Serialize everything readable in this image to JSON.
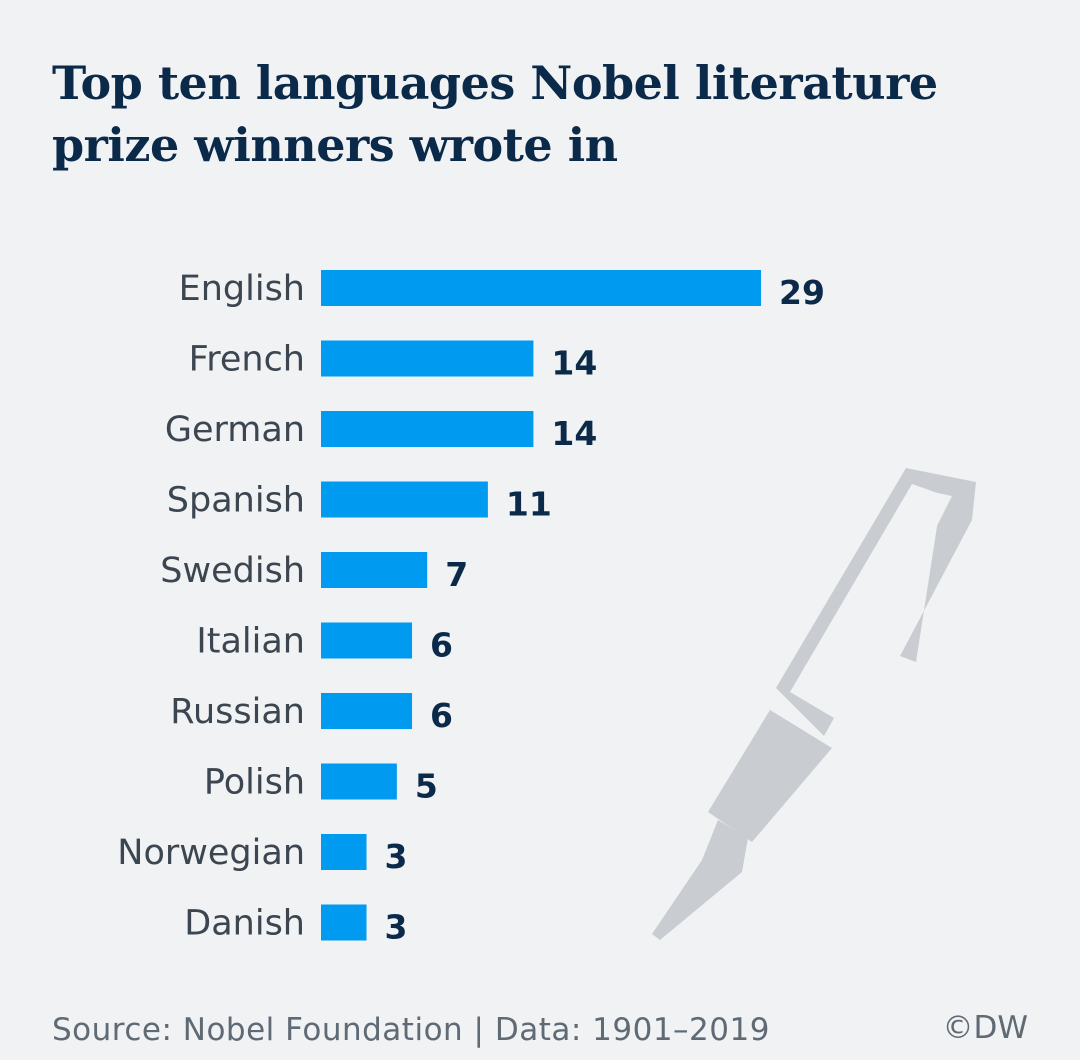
{
  "title": "Top ten languages Nobel literature prize winners wrote in",
  "source": "Source: Nobel Foundation | Data: 1901–2019",
  "copyright": "©DW",
  "colors": {
    "bar": "#009bf0",
    "pen": "#c9cdd1",
    "background": "#f0f2f4",
    "title": "#0b2a4a"
  },
  "decoration": {
    "icon": "fountain-pen-icon"
  },
  "chart_data": {
    "type": "bar",
    "orientation": "horizontal",
    "title": "Top ten languages Nobel literature prize winners wrote in",
    "categories": [
      "English",
      "French",
      "German",
      "Spanish",
      "Swedish",
      "Italian",
      "Russian",
      "Polish",
      "Norwegian",
      "Danish"
    ],
    "values": [
      29,
      14,
      14,
      11,
      7,
      6,
      6,
      5,
      3,
      3
    ],
    "xlim": [
      0,
      29
    ],
    "grid": false,
    "data_labels": true
  }
}
